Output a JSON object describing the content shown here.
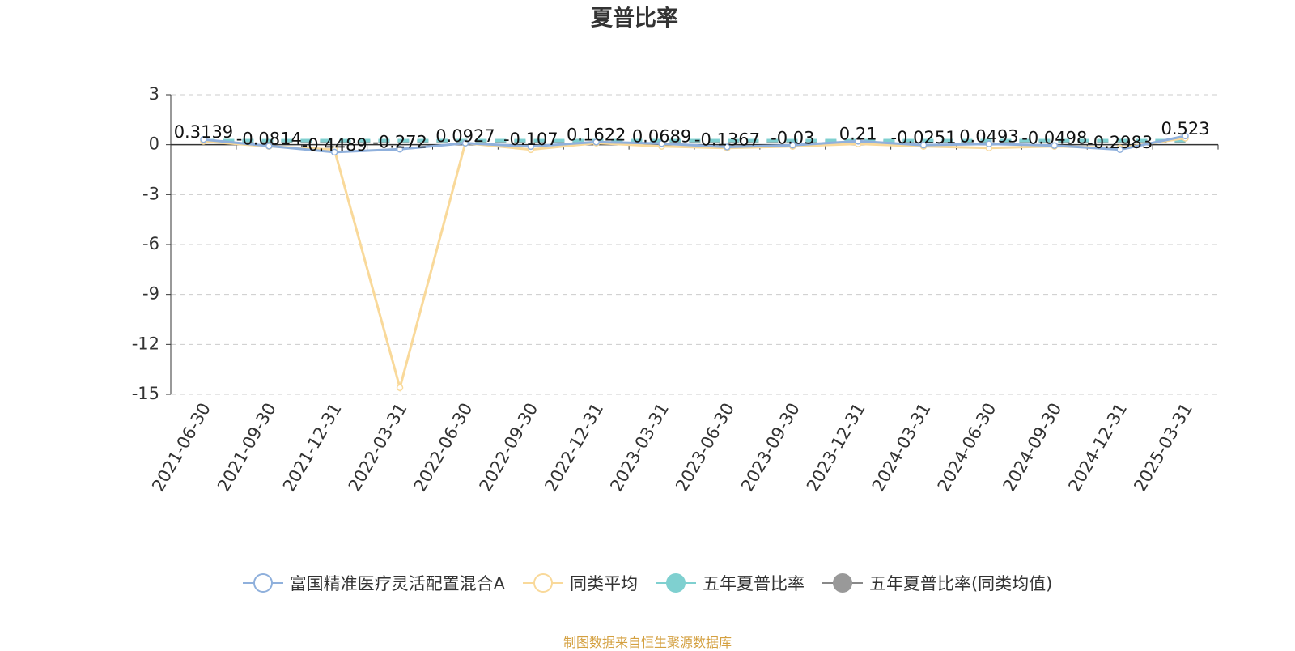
{
  "chart_data": {
    "type": "line",
    "title": "夏普比率",
    "categories": [
      "2021-06-30",
      "2021-09-30",
      "2021-12-31",
      "2022-03-31",
      "2022-06-30",
      "2022-09-30",
      "2022-12-31",
      "2023-03-31",
      "2023-06-30",
      "2023-09-30",
      "2023-12-31",
      "2024-03-31",
      "2024-06-30",
      "2024-09-30",
      "2024-12-31",
      "2025-03-31"
    ],
    "series": [
      {
        "name": "富国精准医疗灵活配置混合A",
        "color": "#8fb0dc",
        "values": [
          0.3139,
          -0.0814,
          -0.4489,
          -0.272,
          0.0927,
          -0.107,
          0.1622,
          0.0689,
          -0.1367,
          -0.03,
          0.21,
          -0.0251,
          0.0493,
          -0.0498,
          -0.2983,
          0.523
        ]
      },
      {
        "name": "同类平均",
        "color": "#f9d99a",
        "values": [
          0.2,
          -0.1,
          -0.3,
          -14.6,
          0.1,
          -0.3,
          0.1,
          -0.1,
          -0.2,
          -0.1,
          0.05,
          -0.1,
          -0.2,
          -0.1,
          -0.2,
          0.4
        ]
      },
      {
        "name": "五年夏普比率",
        "color": "#7fd0d0",
        "values": [
          0.25,
          0.25,
          0.25,
          0.25,
          0.25,
          0.25,
          0.25,
          0.25,
          0.25,
          0.25,
          0.25,
          0.25,
          0.25,
          0.25,
          0.25,
          0.25
        ]
      },
      {
        "name": "五年夏普比率(同类均值)",
        "color": "#999999",
        "values": [
          0.2,
          0.2,
          0.2,
          0.2,
          0.2,
          0.2,
          0.2,
          0.2,
          0.2,
          0.2,
          0.2,
          0.2,
          0.2,
          0.2,
          0.2,
          0.2
        ]
      }
    ],
    "ylim": [
      -15,
      3
    ],
    "yticks": [
      3,
      0,
      -3,
      -6,
      -9,
      -12,
      -15
    ],
    "grid": true,
    "source": "制图数据来自恒生聚源数据库"
  }
}
